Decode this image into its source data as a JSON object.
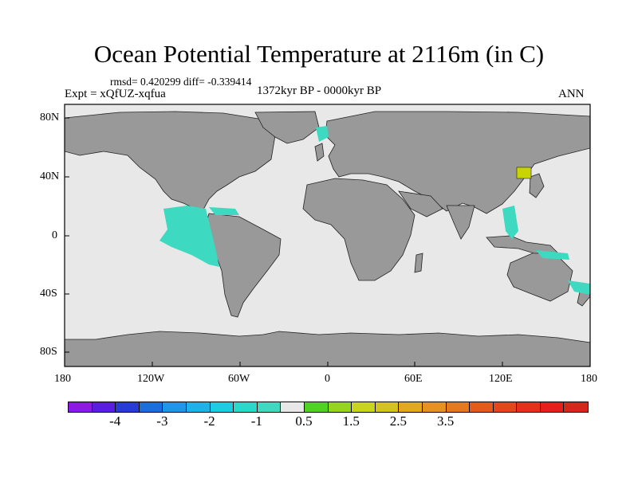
{
  "title": "Ocean Potential Temperature at 2116m (in C)",
  "stats": "rmsd= 0.420299 diff= -0.339414",
  "experiment": "Expt = xQfUZ-xqfua",
  "period": "1372kyr BP - 0000kyr BP",
  "season": "ANN",
  "colors": {
    "land": "#999999",
    "ocean_near_zero": "#e8e8e8",
    "cool_anomaly": "#3dd9c1",
    "warm_anomaly": "#c8d400"
  },
  "lat_labels": [
    "80N",
    "40N",
    "0",
    "40S",
    "80S"
  ],
  "lon_labels": [
    "180",
    "120W",
    "60W",
    "0",
    "60E",
    "120E",
    "180"
  ],
  "colorbar": {
    "colors": [
      "#8a1ae6",
      "#5a1ee0",
      "#2a3ad6",
      "#1c6ee0",
      "#1c98e6",
      "#1cb4e6",
      "#1ccce0",
      "#2ad9c8",
      "#3dd9c1",
      "#e8e8e8",
      "#50d21e",
      "#96d41e",
      "#c8d41e",
      "#d4c21e",
      "#e0aa1e",
      "#e6921e",
      "#e6781e",
      "#e65a1e",
      "#e6461e",
      "#e6301e",
      "#e61e1e",
      "#d4281e"
    ],
    "labels": [
      "-4",
      "-3",
      "-2",
      "-1",
      "0.5",
      "1.5",
      "2.5",
      "3.5"
    ]
  }
}
